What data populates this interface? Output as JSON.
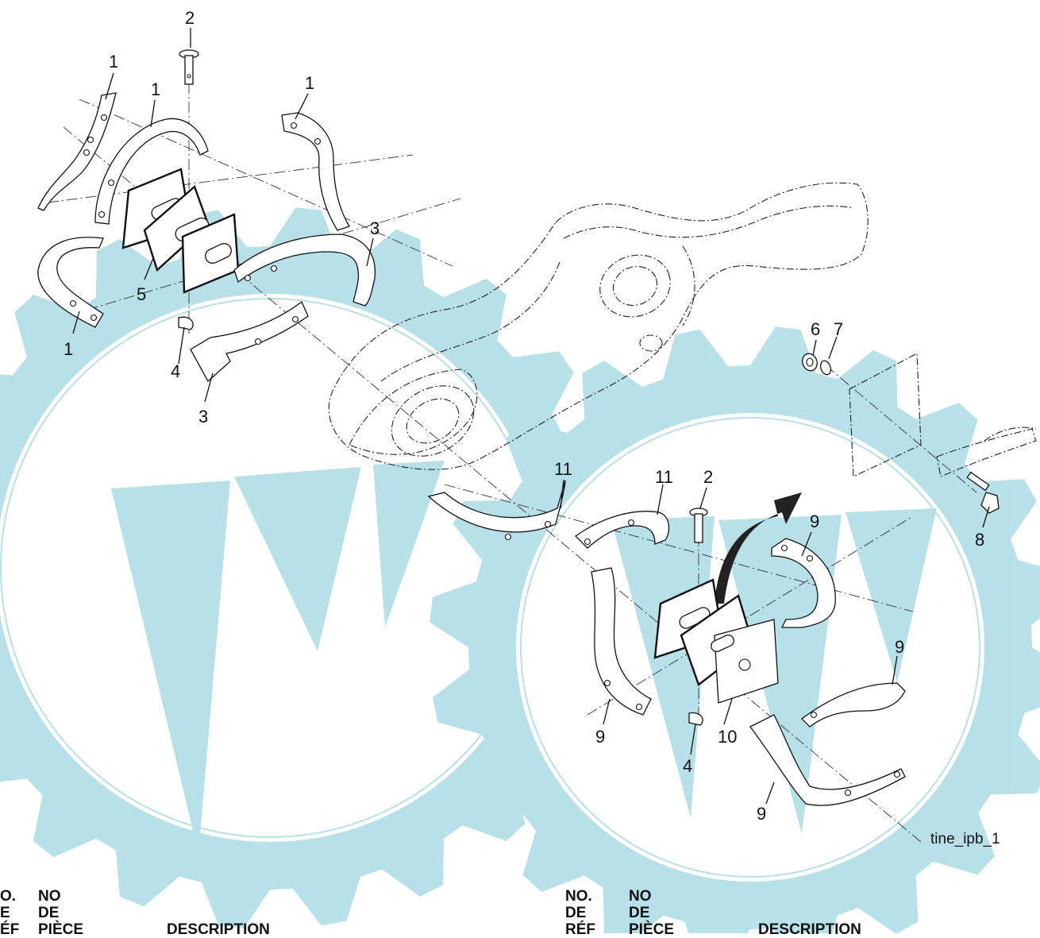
{
  "diagram": {
    "figure_id": "tine_ipb_1",
    "watermark_color": "#b5dfe8",
    "callouts": {
      "c1a": "1",
      "c1b": "1",
      "c1c": "1",
      "c1d": "1",
      "c2a": "2",
      "c2b": "2",
      "c3a": "3",
      "c3b": "3",
      "c4a": "4",
      "c4b": "4",
      "c5": "5",
      "c6": "6",
      "c7": "7",
      "c8": "8",
      "c9a": "9",
      "c9b": "9",
      "c9c": "9",
      "c9d": "9",
      "c10": "10",
      "c11a": "11",
      "c11b": "11"
    }
  },
  "parts_table": {
    "left": {
      "col1_line1": "O.",
      "col1_line2": "E",
      "col1_line3": "ÉF",
      "col2_line1": "NO",
      "col2_line2": "DE",
      "col2_line3": "PIÈCE",
      "col3": "DESCRIPTION"
    },
    "right": {
      "col1_line1": "NO.",
      "col1_line2": "DE",
      "col1_line3": "RÉF",
      "col2_line1": "NO",
      "col2_line2": "DE",
      "col2_line3": "PIÈCE",
      "col3": "DESCRIPTION"
    }
  }
}
